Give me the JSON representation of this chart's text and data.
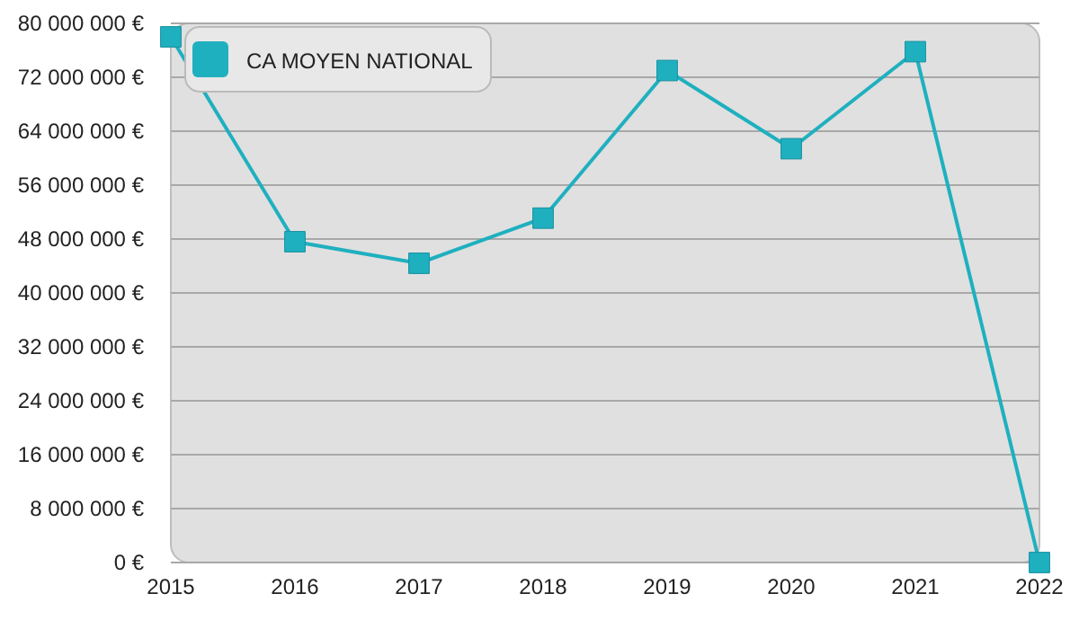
{
  "chart_data": {
    "type": "line",
    "categories": [
      "2015",
      "2016",
      "2017",
      "2018",
      "2019",
      "2020",
      "2021",
      "2022"
    ],
    "series": [
      {
        "name": "CA MOYEN NATIONAL",
        "color": "#1fb0bf",
        "values": [
          78000000,
          47600000,
          44400000,
          51100000,
          73000000,
          61400000,
          75800000,
          0
        ]
      }
    ],
    "ylim": [
      0,
      80000000
    ],
    "yticks": [
      {
        "value": 0,
        "label": "0 €"
      },
      {
        "value": 8000000,
        "label": "8 000 000 €"
      },
      {
        "value": 16000000,
        "label": "16 000 000 €"
      },
      {
        "value": 24000000,
        "label": "24 000 000 €"
      },
      {
        "value": 32000000,
        "label": "32 000 000 €"
      },
      {
        "value": 40000000,
        "label": "40 000 000 €"
      },
      {
        "value": 48000000,
        "label": "48 000 000 €"
      },
      {
        "value": 56000000,
        "label": "56 000 000 €"
      },
      {
        "value": 64000000,
        "label": "64 000 000 €"
      },
      {
        "value": 72000000,
        "label": "72 000 000 €"
      },
      {
        "value": 80000000,
        "label": "80 000 000 €"
      }
    ],
    "grid": "y",
    "legend": "top left",
    "marker": "square",
    "line_style": "solid"
  }
}
